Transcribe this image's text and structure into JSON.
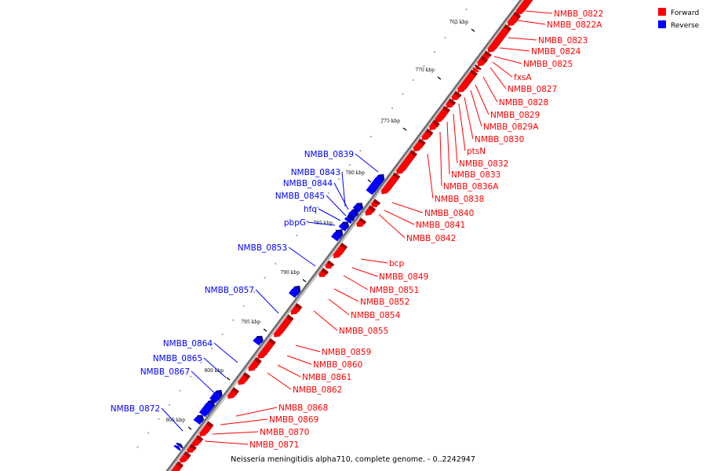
{
  "caption": "Neisseria meningitidis alpha710, complete genome. - 0..2242947",
  "legend": [
    {
      "label": "Forward",
      "color": "#ff0000"
    },
    {
      "label": "Reverse",
      "color": "#0000ff"
    }
  ],
  "colors": {
    "forward": "#ff0000",
    "reverse": "#0000ff",
    "axis": "#808080"
  },
  "ticks": [
    {
      "kbp": 765,
      "label": "765 kbp"
    },
    {
      "kbp": 770,
      "label": "770 kbp"
    },
    {
      "kbp": 775,
      "label": "775 kbp"
    },
    {
      "kbp": 780,
      "label": "780 kbp"
    },
    {
      "kbp": 785,
      "label": "785 kbp"
    },
    {
      "kbp": 790,
      "label": "790 kbp"
    },
    {
      "kbp": 795,
      "label": "795 kbp"
    },
    {
      "kbp": 800,
      "label": "800 kbp"
    },
    {
      "kbp": 805,
      "label": "805 kbp"
    }
  ],
  "forward_genes": [
    {
      "label": "NMBB_0822"
    },
    {
      "label": "NMBB_0822A"
    },
    {
      "label": "NMBB_0823"
    },
    {
      "label": "NMBB_0824"
    },
    {
      "label": "NMBB_0825"
    },
    {
      "label": "fxsA"
    },
    {
      "label": "NMBB_0827"
    },
    {
      "label": "NMBB_0828"
    },
    {
      "label": "NMBB_0829"
    },
    {
      "label": "NMBB_0829A"
    },
    {
      "label": "NMBB_0830"
    },
    {
      "label": "ptsN"
    },
    {
      "label": "NMBB_0832"
    },
    {
      "label": "NMBB_0833"
    },
    {
      "label": "NMBB_0836A"
    },
    {
      "label": "NMBB_0838"
    },
    {
      "label": "NMBB_0840"
    },
    {
      "label": "NMBB_0841"
    },
    {
      "label": "NMBB_0842"
    },
    {
      "label": "bcp"
    },
    {
      "label": "NMBB_0849"
    },
    {
      "label": "NMBB_0851"
    },
    {
      "label": "NMBB_0852"
    },
    {
      "label": "NMBB_0854"
    },
    {
      "label": "NMBB_0855"
    },
    {
      "label": "NMBB_0859"
    },
    {
      "label": "NMBB_0860"
    },
    {
      "label": "NMBB_0861"
    },
    {
      "label": "NMBB_0862"
    },
    {
      "label": "NMBB_0868"
    },
    {
      "label": "NMBB_0869"
    },
    {
      "label": "NMBB_0870"
    },
    {
      "label": "NMBB_0871"
    }
  ],
  "reverse_genes": [
    {
      "label": "NMBB_0839"
    },
    {
      "label": "NMBB_0843"
    },
    {
      "label": "NMBB_0844"
    },
    {
      "label": "NMBB_0845"
    },
    {
      "label": "hfq"
    },
    {
      "label": "pbpG"
    },
    {
      "label": "NMBB_0853"
    },
    {
      "label": "NMBB_0857"
    },
    {
      "label": "NMBB_0864"
    },
    {
      "label": "NMBB_0865"
    },
    {
      "label": "NMBB_0867"
    },
    {
      "label": "NMBB_0872"
    }
  ]
}
